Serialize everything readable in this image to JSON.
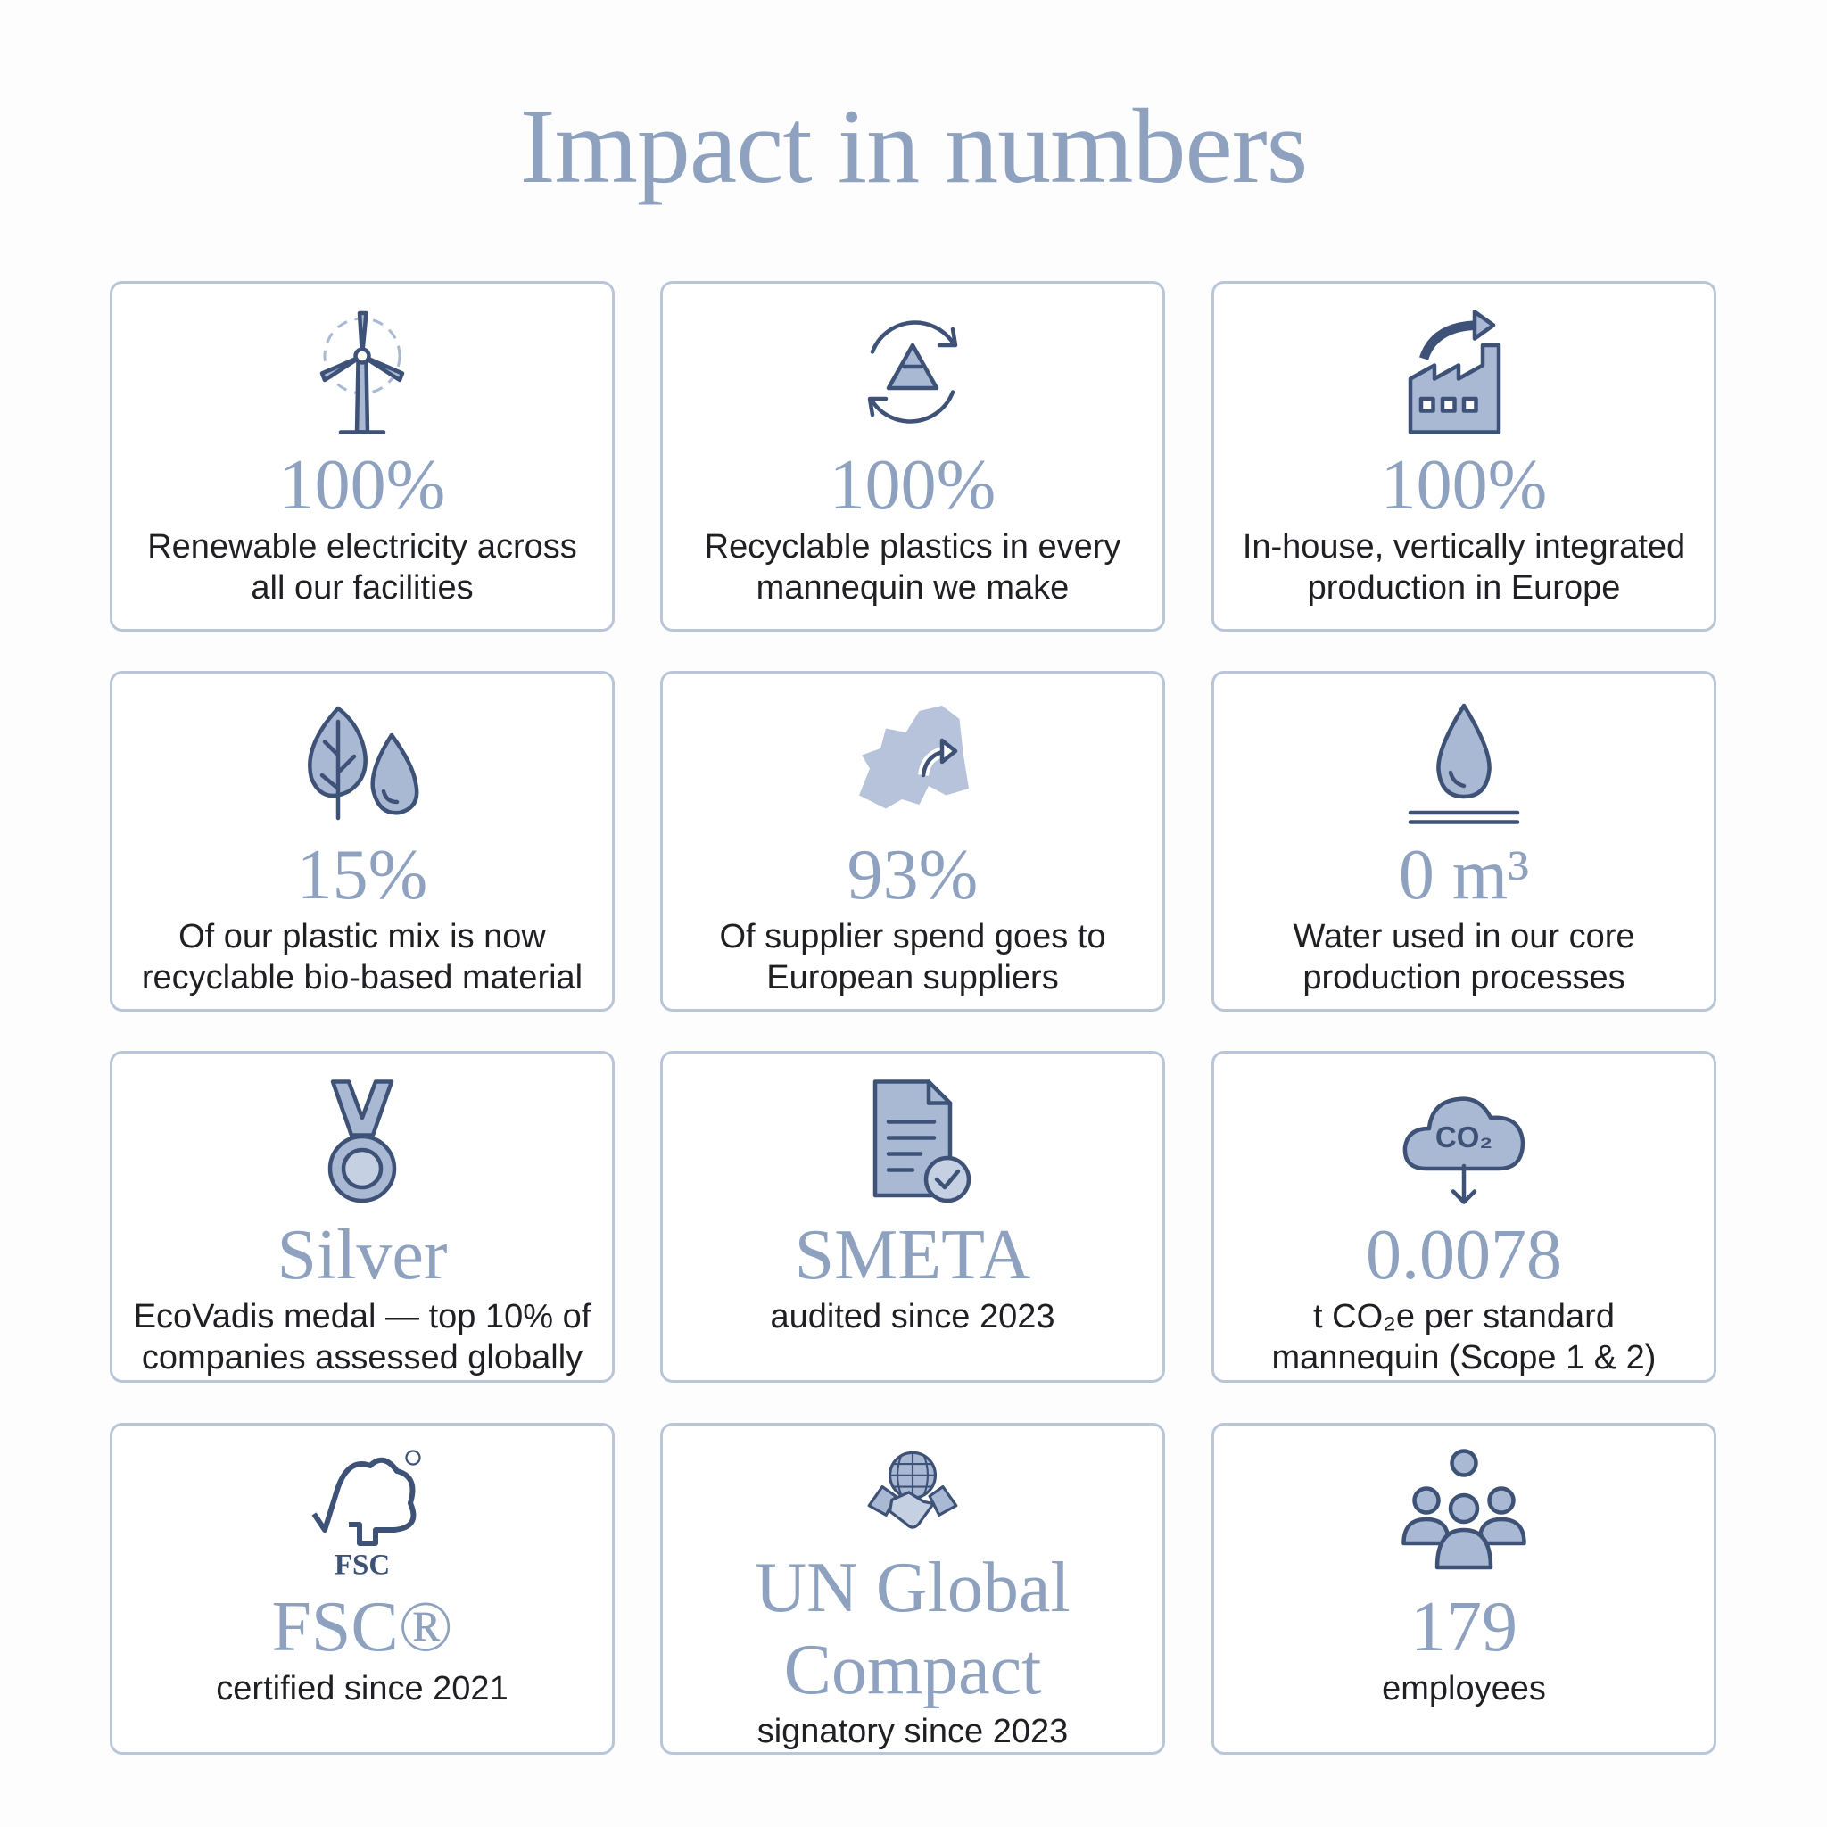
{
  "header": {
    "title": "Impact in numbers"
  },
  "cards": [
    {
      "value": "100%",
      "label": "Renewable electricity across all our facilities"
    },
    {
      "value": "100%",
      "label": "Recyclable plastics in every mannequin we make"
    },
    {
      "value": "100%",
      "label": "In-house, vertically integrated production in Europe"
    },
    {
      "value": "15%",
      "label": "Of our plastic mix is now recyclable bio-based material"
    },
    {
      "value": "93%",
      "label": "Of supplier spend goes to European suppliers"
    },
    {
      "value": "0 m³",
      "label": "Water used in our core production processes"
    },
    {
      "value": "Silver",
      "label": "EcoVadis medal — top 10% of companies assessed globally"
    },
    {
      "value": "SMETA",
      "label": "audited since 2023"
    },
    {
      "value": "0.0078",
      "label": "t CO₂e per standard mannequin (Scope 1 & 2)",
      "icon_text": "CO₂"
    },
    {
      "value": "FSC®",
      "label": "certified since 2021",
      "icon_text": "FSC"
    },
    {
      "value": "UN Global Compact",
      "label": "signatory since 2023"
    },
    {
      "value": "179",
      "label": "employees"
    }
  ]
}
